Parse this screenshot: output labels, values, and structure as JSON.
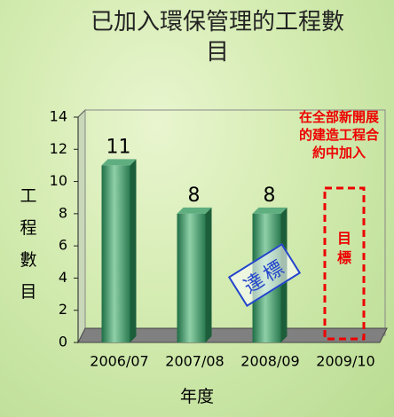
{
  "chart_data": {
    "type": "bar",
    "title": "已加入環保管理的工程數目",
    "y_label": "工程數目",
    "x_label": "年度",
    "categories": [
      "2006/07",
      "2007/08",
      "2008/09",
      "2009/10"
    ],
    "values": [
      11,
      8,
      8,
      null
    ],
    "color": "#2e8b57",
    "ylim": [
      0,
      14
    ],
    "yticks": [
      0,
      2,
      4,
      6,
      8,
      10,
      12,
      14
    ],
    "grid": false,
    "annotations": [
      "在全部新開展的建造工程合約中加入",
      "目標",
      "達標"
    ]
  }
}
